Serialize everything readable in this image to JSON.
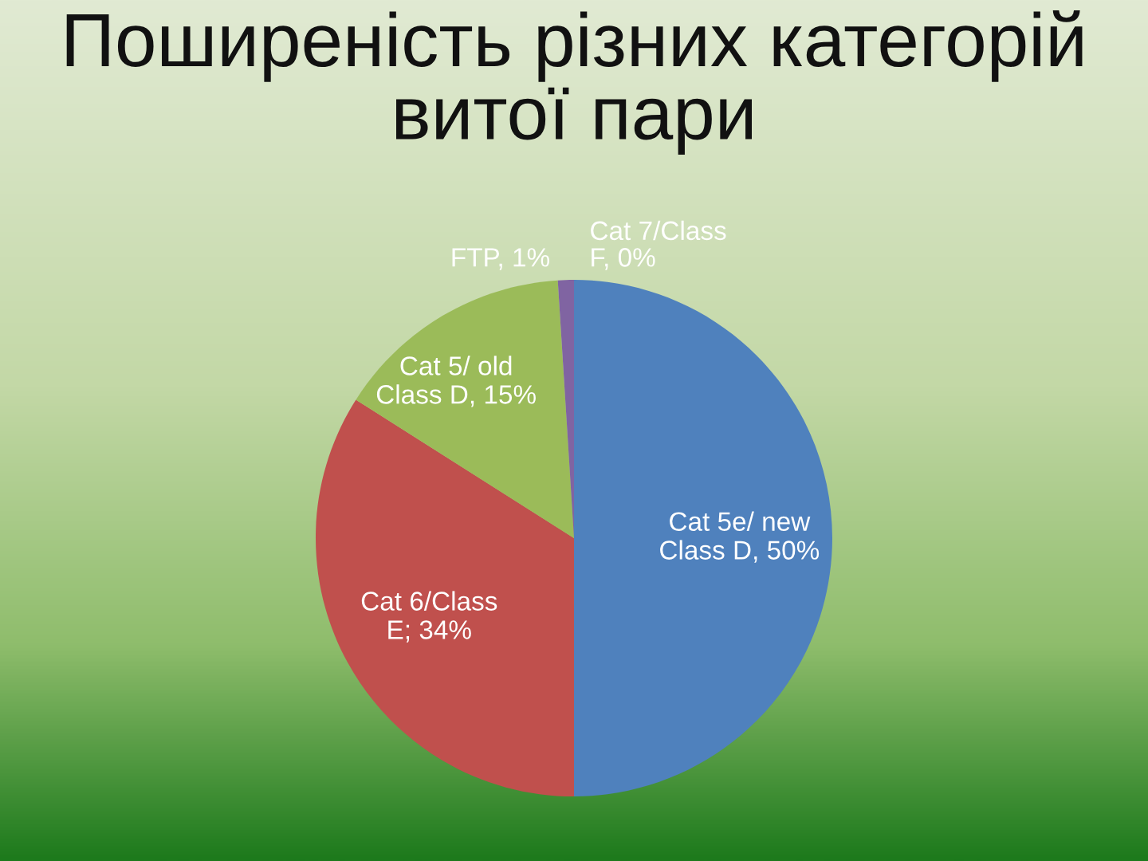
{
  "chart_data": {
    "type": "pie",
    "title": "Поширеність різних категорій витої пари",
    "categories": [
      "Cat 5e/ new Class D",
      "Cat 6/Class E",
      "Cat 5/ old Class D",
      "FTP",
      "Cat 7/Class F"
    ],
    "values": [
      50,
      34,
      15,
      1,
      0
    ],
    "value_labels": [
      ", 50%",
      "; 34%",
      ", 15%",
      ", 1%",
      ", 0%"
    ],
    "colors": [
      "#4f81bd",
      "#c0504d",
      "#9bbb59",
      "#8064a2",
      "#4bacc6"
    ]
  }
}
